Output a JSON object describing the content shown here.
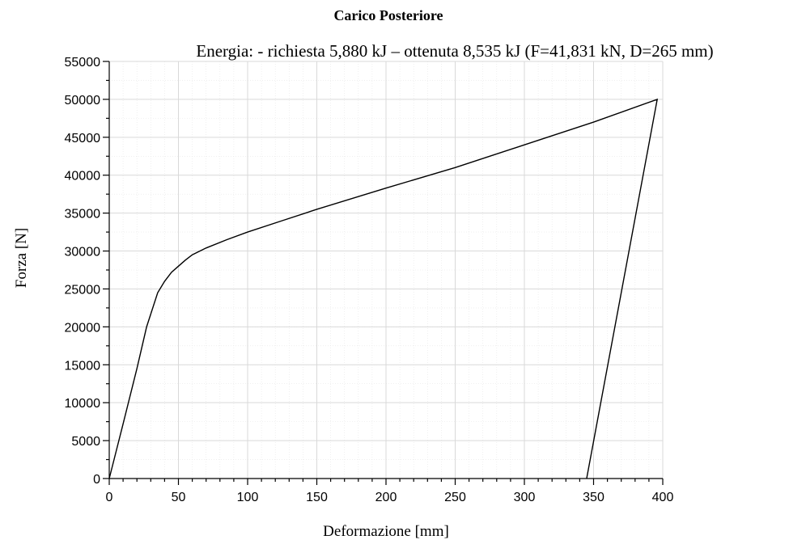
{
  "chart_data": {
    "type": "line",
    "title": "Carico Posteriore",
    "subtitle": "Energia: - richiesta 5,880 kJ – ottenuta 8,535 kJ (F=41,831 kN, D=265 mm)",
    "xlabel": "Deformazione [mm]",
    "ylabel": "Forza [N]",
    "xlim": [
      0,
      400
    ],
    "ylim": [
      0,
      55000
    ],
    "x_ticks": [
      0,
      50,
      100,
      150,
      200,
      250,
      300,
      350,
      400
    ],
    "y_ticks": [
      0,
      5000,
      10000,
      15000,
      20000,
      25000,
      30000,
      35000,
      40000,
      45000,
      50000,
      55000
    ],
    "grid": true,
    "series": [
      {
        "points": [
          [
            0,
            0
          ],
          [
            10,
            7200
          ],
          [
            20,
            14500
          ],
          [
            27,
            20000
          ],
          [
            35,
            24500
          ],
          [
            40,
            26000
          ],
          [
            45,
            27200
          ],
          [
            50,
            28000
          ],
          [
            55,
            28800
          ],
          [
            60,
            29500
          ],
          [
            70,
            30400
          ],
          [
            85,
            31500
          ],
          [
            100,
            32500
          ],
          [
            125,
            34000
          ],
          [
            150,
            35500
          ],
          [
            200,
            38300
          ],
          [
            250,
            41000
          ],
          [
            300,
            44000
          ],
          [
            350,
            47000
          ],
          [
            396,
            50000
          ],
          [
            345,
            0
          ]
        ]
      }
    ]
  }
}
